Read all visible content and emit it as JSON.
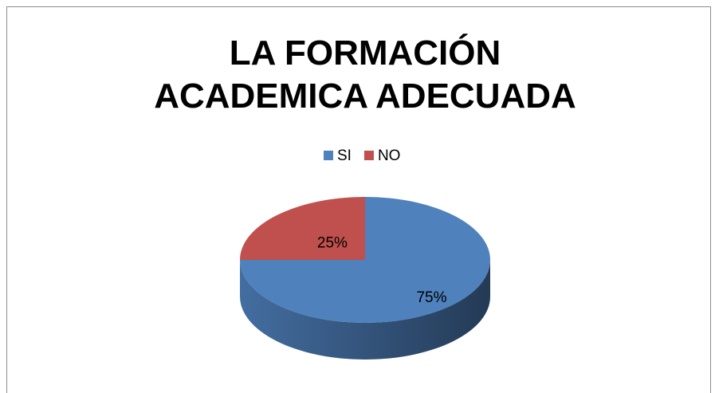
{
  "chart_data": {
    "type": "pie",
    "title": "LA FORMACIÓN ACADEMICA ADECUADA",
    "categories": [
      "SI",
      "NO"
    ],
    "values": [
      75,
      25
    ],
    "value_labels": [
      "75%",
      "25%"
    ],
    "colors": [
      "#4f81bd",
      "#c0504d"
    ],
    "legend": "top"
  }
}
